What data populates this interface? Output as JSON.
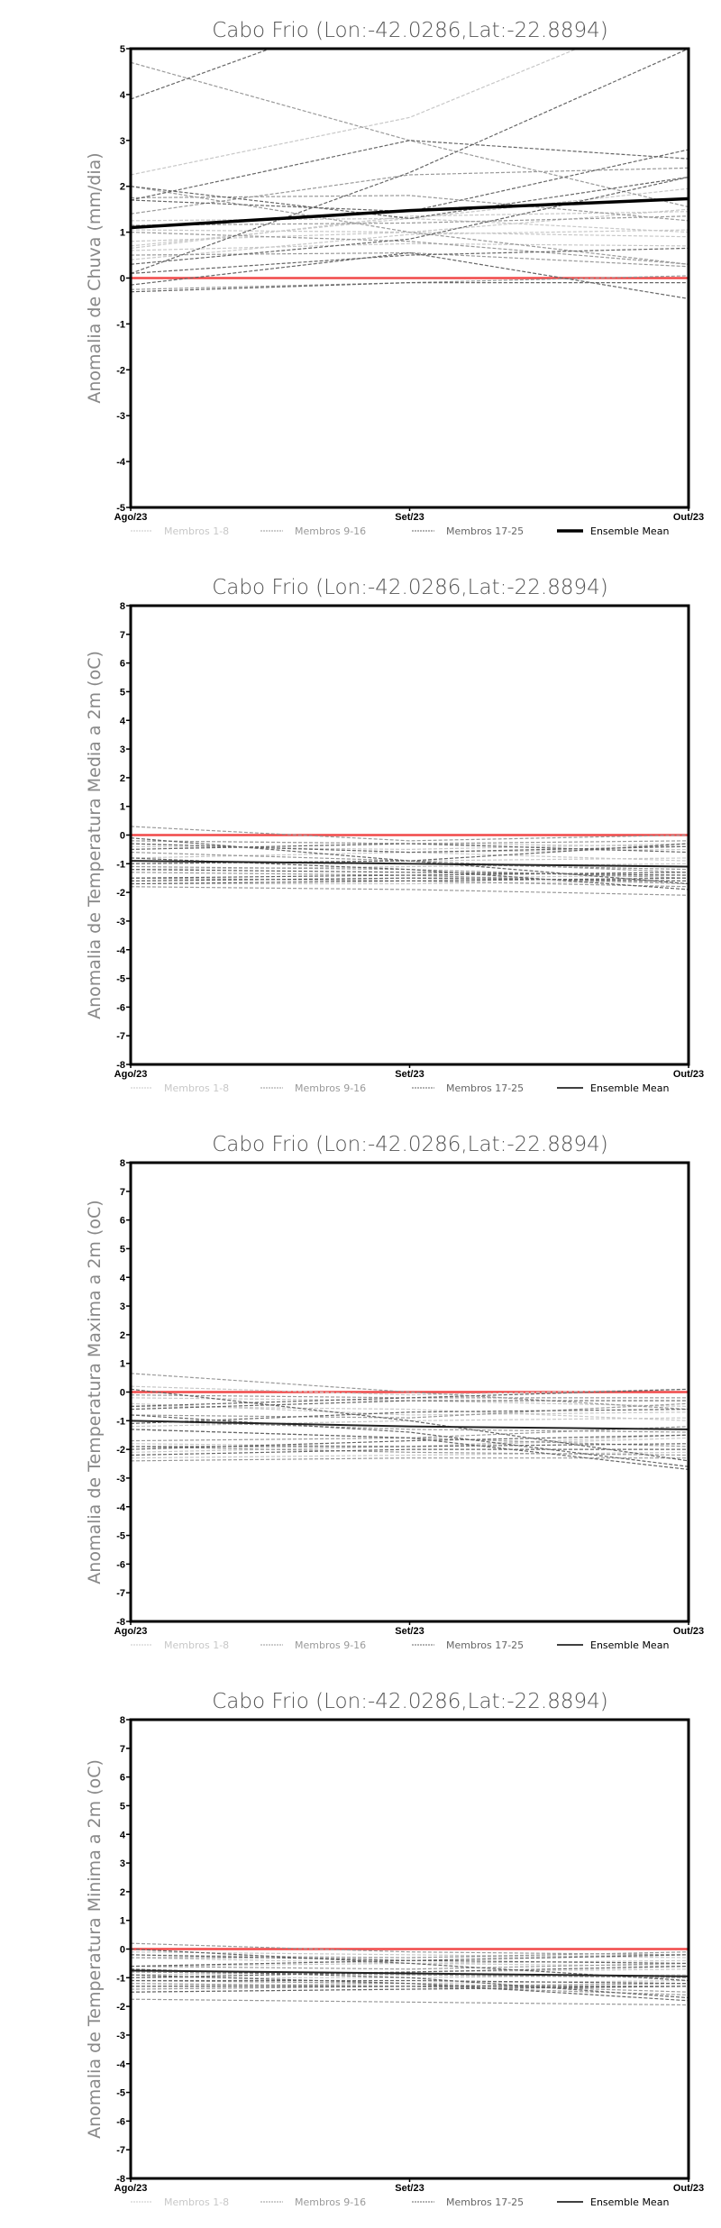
{
  "chart_data": [
    {
      "type": "line",
      "title": "Cabo Frio (Lon:-42.0286,Lat:-22.8894)",
      "xlabel": "",
      "ylabel": "Anomalia de Chuva (mm/dia)",
      "categories": [
        "Ago/23",
        "Set/23",
        "Out/23"
      ],
      "ylim": [
        -5,
        5
      ],
      "yticks": [
        -5,
        -4,
        -3,
        -2,
        -1,
        0,
        1,
        2,
        3,
        4,
        5
      ],
      "legend": [
        "Membros 1-8",
        "Membros 9-16",
        "Membros 17-25",
        "Ensemble Mean"
      ],
      "legend_position": "bottom",
      "groups": [
        {
          "name": "Membros 1-8",
          "members": [
            [
              2.25,
              3.5,
              6.0
            ],
            [
              1.05,
              1.0,
              1.5
            ],
            [
              0.8,
              1.0,
              0.9
            ],
            [
              0.6,
              0.75,
              0.7
            ],
            [
              0.65,
              1.35,
              1.45
            ],
            [
              1.25,
              1.3,
              1.95
            ],
            [
              0.4,
              0.95,
              1.05
            ],
            [
              0.7,
              1.3,
              1.0
            ]
          ]
        },
        {
          "name": "Membros 9-16",
          "members": [
            [
              4.7,
              3.0,
              1.55
            ],
            [
              1.75,
              1.8,
              1.25
            ],
            [
              1.4,
              2.25,
              2.4
            ],
            [
              1.0,
              0.8,
              0.3
            ],
            [
              0.5,
              0.55,
              0.25
            ],
            [
              2.0,
              1.0,
              0.3
            ],
            [
              1.15,
              1.2,
              1.35
            ],
            [
              -0.25,
              -0.1,
              0.05
            ]
          ]
        },
        {
          "name": "Membros 17-25",
          "members": [
            [
              3.9,
              6.1,
              7.0
            ],
            [
              1.7,
              3.0,
              2.6
            ],
            [
              0.1,
              2.3,
              5.0
            ],
            [
              2.0,
              1.3,
              2.2
            ],
            [
              1.7,
              1.45,
              2.8
            ],
            [
              0.3,
              0.85,
              2.2
            ],
            [
              0.1,
              0.5,
              0.65
            ],
            [
              -0.15,
              0.55,
              -0.45
            ],
            [
              -0.3,
              -0.1,
              -0.1
            ]
          ]
        }
      ],
      "ensemble_mean": [
        1.1,
        1.47,
        1.73
      ]
    },
    {
      "type": "line",
      "title": "Cabo Frio (Lon:-42.0286,Lat:-22.8894)",
      "xlabel": "",
      "ylabel": "Anomalia de Temperatura Media a 2m (oC)",
      "categories": [
        "Ago/23",
        "Set/23",
        "Out/23"
      ],
      "ylim": [
        -8,
        8
      ],
      "yticks": [
        -8,
        -7,
        -6,
        -5,
        -4,
        -3,
        -2,
        -1,
        0,
        1,
        2,
        3,
        4,
        5,
        6,
        7,
        8
      ],
      "legend": [
        "Membros 1-8",
        "Membros 9-16",
        "Membros 17-25",
        "Ensemble Mean"
      ],
      "legend_position": "bottom",
      "groups": [
        {
          "name": "Membros 1-8",
          "members": [
            [
              -0.2,
              -0.3,
              -0.4
            ],
            [
              -0.4,
              -0.5,
              -0.3
            ],
            [
              -1.2,
              -1.1,
              -1.0
            ],
            [
              -1.6,
              -1.5,
              -1.4
            ],
            [
              -0.3,
              -0.6,
              -0.5
            ],
            [
              -1.0,
              -0.9,
              -0.8
            ],
            [
              -1.7,
              -1.7,
              -1.6
            ],
            [
              -0.8,
              -0.6,
              -0.9
            ]
          ]
        },
        {
          "name": "Membros 9-16",
          "members": [
            [
              0.3,
              -0.2,
              0.0
            ],
            [
              -1.5,
              -1.6,
              -1.8
            ],
            [
              -0.6,
              -0.9,
              -1.3
            ],
            [
              -1.1,
              -1.2,
              -1.5
            ],
            [
              -1.8,
              -1.9,
              -2.1
            ],
            [
              -0.2,
              -0.3,
              -0.2
            ],
            [
              -1.3,
              -1.4,
              -1.7
            ],
            [
              -0.9,
              -1.0,
              -1.2
            ]
          ]
        },
        {
          "name": "Membros 17-25",
          "members": [
            [
              -0.1,
              -0.9,
              -1.7
            ],
            [
              -0.5,
              -0.3,
              -0.6
            ],
            [
              -1.5,
              -1.4,
              -1.3
            ],
            [
              -1.7,
              -1.6,
              -1.5
            ],
            [
              -0.8,
              -1.2,
              -1.9
            ],
            [
              -1.2,
              -1.3,
              -1.4
            ],
            [
              -1.0,
              -0.9,
              -0.3
            ],
            [
              -1.6,
              -1.5,
              -1.6
            ],
            [
              -0.3,
              -0.6,
              -0.4
            ]
          ]
        }
      ],
      "ensemble_mean": [
        -0.9,
        -1.0,
        -1.1
      ]
    },
    {
      "type": "line",
      "title": "Cabo Frio (Lon:-42.0286,Lat:-22.8894)",
      "xlabel": "",
      "ylabel": "Anomalia de Temperatura Maxima a 2m (oC)",
      "categories": [
        "Ago/23",
        "Set/23",
        "Out/23"
      ],
      "ylim": [
        -8,
        8
      ],
      "yticks": [
        -8,
        -7,
        -6,
        -5,
        -4,
        -3,
        -2,
        -1,
        0,
        1,
        2,
        3,
        4,
        5,
        6,
        7,
        8
      ],
      "legend": [
        "Membros 1-8",
        "Membros 9-16",
        "Membros 17-25",
        "Ensemble Mean"
      ],
      "legend_position": "bottom",
      "groups": [
        {
          "name": "Membros 1-8",
          "members": [
            [
              -0.2,
              -0.3,
              -0.5
            ],
            [
              -0.4,
              -0.8,
              -0.7
            ],
            [
              -1.8,
              -1.9,
              -1.6
            ],
            [
              -2.1,
              -1.9,
              -1.5
            ],
            [
              -0.5,
              -0.6,
              -1.0
            ],
            [
              -1.2,
              -1.0,
              -0.9
            ],
            [
              -2.3,
              -2.2,
              -2.1
            ],
            [
              0.2,
              -0.1,
              0.1
            ]
          ]
        },
        {
          "name": "Membros 9-16",
          "members": [
            [
              0.65,
              0.0,
              -0.6
            ],
            [
              -1.9,
              -2.1,
              -2.2
            ],
            [
              -0.8,
              -0.9,
              -0.4
            ],
            [
              -1.3,
              -1.6,
              -1.9
            ],
            [
              -2.4,
              -2.3,
              -2.3
            ],
            [
              -0.1,
              -0.2,
              -0.2
            ],
            [
              -1.7,
              -1.6,
              -1.2
            ],
            [
              -1.0,
              -1.3,
              -1.4
            ]
          ]
        },
        {
          "name": "Membros 17-25",
          "members": [
            [
              0.1,
              -1.0,
              -2.4
            ],
            [
              -0.5,
              -0.2,
              0.1
            ],
            [
              -1.9,
              -1.9,
              -1.8
            ],
            [
              -2.2,
              -2.0,
              -2.0
            ],
            [
              -1.3,
              -1.6,
              -2.7
            ],
            [
              -0.8,
              -1.4,
              -2.6
            ],
            [
              -1.1,
              -0.7,
              -0.6
            ],
            [
              -2.0,
              -1.7,
              -1.5
            ],
            [
              -0.6,
              -0.3,
              -0.3
            ]
          ]
        }
      ],
      "ensemble_mean": [
        -1.0,
        -1.2,
        -1.3
      ]
    },
    {
      "type": "line",
      "title": "Cabo Frio (Lon:-42.0286,Lat:-22.8894)",
      "xlabel": "",
      "ylabel": "Anomalia de Temperatura Minima a 2m (oC)",
      "categories": [
        "Ago/23",
        "Set/23",
        "Out/23"
      ],
      "ylim": [
        -8,
        8
      ],
      "yticks": [
        -8,
        -7,
        -6,
        -5,
        -4,
        -3,
        -2,
        -1,
        0,
        1,
        2,
        3,
        4,
        5,
        6,
        7,
        8
      ],
      "legend": [
        "Membros 1-8",
        "Membros 9-16",
        "Membros 17-25",
        "Ensemble Mean"
      ],
      "legend_position": "bottom",
      "groups": [
        {
          "name": "Membros 1-8",
          "members": [
            [
              -0.1,
              -0.2,
              -0.3
            ],
            [
              -0.3,
              -0.5,
              -0.4
            ],
            [
              -1.0,
              -1.0,
              -0.9
            ],
            [
              -1.3,
              -1.2,
              -1.1
            ],
            [
              -0.6,
              -0.5,
              -0.6
            ],
            [
              -0.9,
              -0.8,
              -0.7
            ],
            [
              -1.5,
              -1.4,
              -1.3
            ],
            [
              -0.2,
              -0.3,
              -0.2
            ]
          ]
        },
        {
          "name": "Membros 9-16",
          "members": [
            [
              0.2,
              -0.1,
              -0.2
            ],
            [
              -1.1,
              -1.2,
              -1.5
            ],
            [
              -0.6,
              -0.7,
              -0.5
            ],
            [
              -1.2,
              -1.3,
              -1.6
            ],
            [
              -1.75,
              -1.85,
              -1.95
            ],
            [
              -0.3,
              -0.3,
              -0.1
            ],
            [
              -1.4,
              -1.3,
              -1.2
            ],
            [
              -0.8,
              -0.9,
              -1.0
            ]
          ]
        },
        {
          "name": "Membros 17-25",
          "members": [
            [
              0.0,
              -0.5,
              -1.1
            ],
            [
              -0.6,
              -0.4,
              -0.5
            ],
            [
              -1.1,
              -1.1,
              -1.2
            ],
            [
              -1.5,
              -1.4,
              -1.3
            ],
            [
              -0.7,
              -1.0,
              -1.7
            ],
            [
              -0.9,
              -1.2,
              -1.8
            ],
            [
              -1.0,
              -0.8,
              -0.6
            ],
            [
              -1.3,
              -1.3,
              -1.3
            ],
            [
              -0.2,
              -0.4,
              -0.2
            ]
          ]
        }
      ],
      "ensemble_mean": [
        -0.75,
        -0.85,
        -0.95
      ]
    }
  ],
  "colors": {
    "members_1_8": "#c8c8c8",
    "members_9_16": "#9a9a9a",
    "members_17_25": "#666666",
    "ensemble_mean": "#000000",
    "zero_line": "#f04848"
  }
}
